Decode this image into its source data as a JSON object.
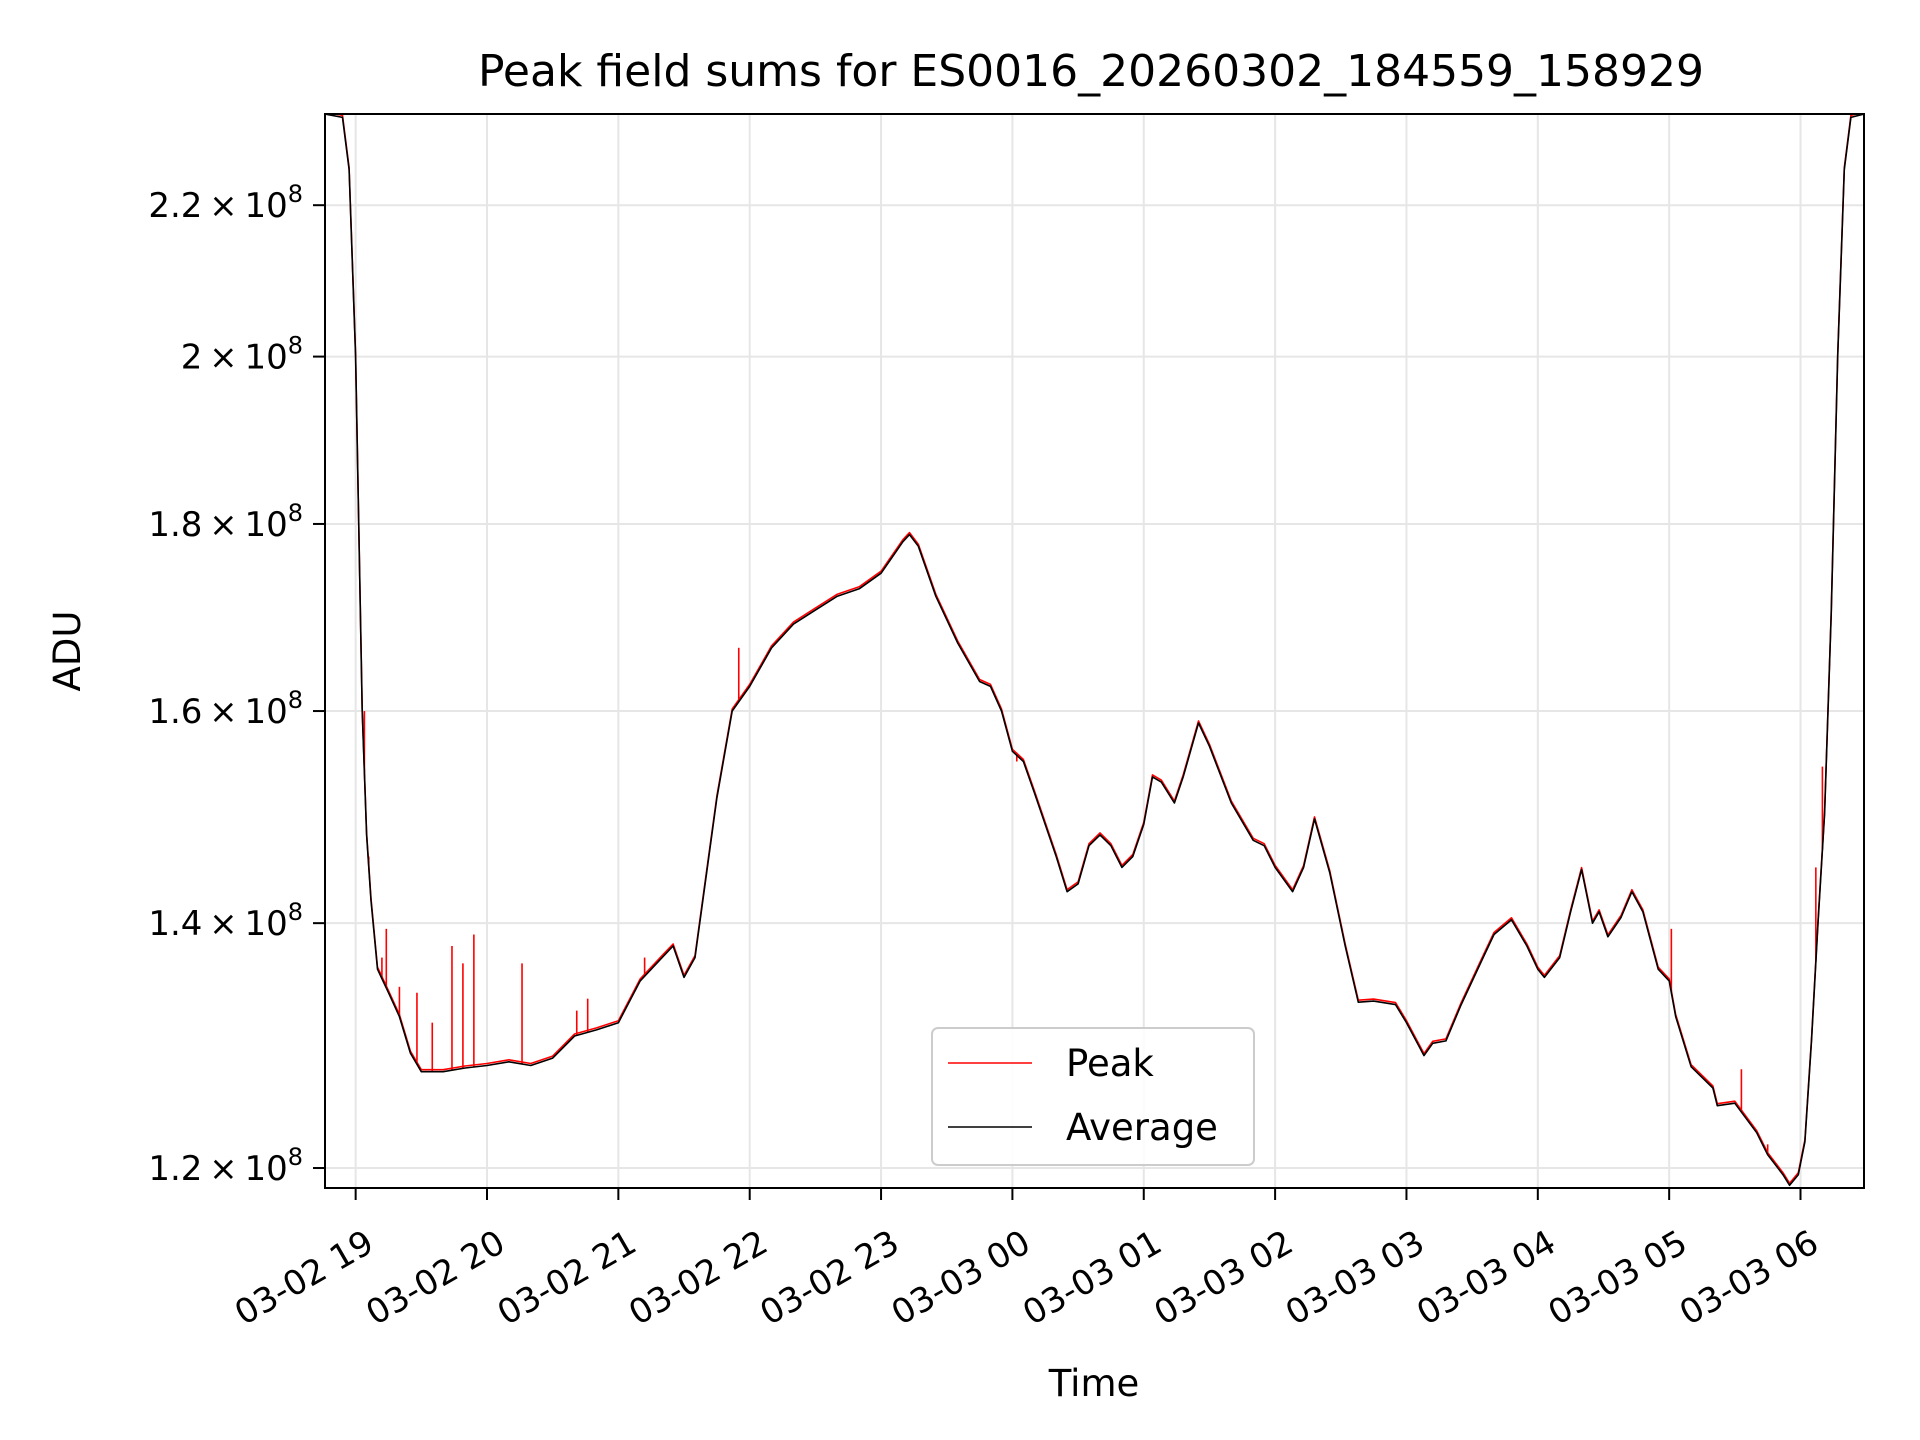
{
  "chart_data": {
    "type": "line",
    "title": "Peak field sums for ES0016_20260302_184559_158929",
    "xlabel": "Time",
    "ylabel": "ADU",
    "y_scale": "log",
    "grid": true,
    "legend_position": "lower-center",
    "xlim": [
      "2026-03-02 18:46",
      "2026-03-03 06:29"
    ],
    "ylim": [
      118500000,
      233000000
    ],
    "x_ticks": [
      {
        "t": "2026-03-02 19:00",
        "label": "03-02 19"
      },
      {
        "t": "2026-03-02 20:00",
        "label": "03-02 20"
      },
      {
        "t": "2026-03-02 21:00",
        "label": "03-02 21"
      },
      {
        "t": "2026-03-02 22:00",
        "label": "03-02 22"
      },
      {
        "t": "2026-03-02 23:00",
        "label": "03-02 23"
      },
      {
        "t": "2026-03-03 00:00",
        "label": "03-03 00"
      },
      {
        "t": "2026-03-03 01:00",
        "label": "03-03 01"
      },
      {
        "t": "2026-03-03 02:00",
        "label": "03-03 02"
      },
      {
        "t": "2026-03-03 03:00",
        "label": "03-03 03"
      },
      {
        "t": "2026-03-03 04:00",
        "label": "03-03 04"
      },
      {
        "t": "2026-03-03 05:00",
        "label": "03-03 05"
      },
      {
        "t": "2026-03-03 06:00",
        "label": "03-03 06"
      }
    ],
    "y_ticks": [
      {
        "value": 120000000,
        "mantissa": "1.2",
        "base": "10",
        "exponent": "8"
      },
      {
        "value": 140000000,
        "mantissa": "1.4",
        "base": "10",
        "exponent": "8"
      },
      {
        "value": 160000000,
        "mantissa": "1.6",
        "base": "10",
        "exponent": "8"
      },
      {
        "value": 180000000,
        "mantissa": "1.8",
        "base": "10",
        "exponent": "8"
      },
      {
        "value": 200000000,
        "mantissa": "2",
        "base": "10",
        "exponent": "8"
      },
      {
        "value": 220000000,
        "mantissa": "2.2",
        "base": "10",
        "exponent": "8"
      }
    ],
    "series": [
      {
        "name": "Average",
        "color": "#000000",
        "points": [
          [
            "2026-03-02 18:46",
            233000000
          ],
          [
            "2026-03-02 18:54",
            232500000
          ],
          [
            "2026-03-02 18:57",
            225000000
          ],
          [
            "2026-03-02 19:00",
            200000000
          ],
          [
            "2026-03-02 19:03",
            160000000
          ],
          [
            "2026-03-02 19:05",
            148000000
          ],
          [
            "2026-03-02 19:07",
            142000000
          ],
          [
            "2026-03-02 19:10",
            136000000
          ],
          [
            "2026-03-02 19:15",
            134000000
          ],
          [
            "2026-03-02 19:20",
            132000000
          ],
          [
            "2026-03-02 19:25",
            129000000
          ],
          [
            "2026-03-02 19:30",
            127500000
          ],
          [
            "2026-03-02 19:40",
            127500000
          ],
          [
            "2026-03-02 19:50",
            127800000
          ],
          [
            "2026-03-02 20:00",
            128000000
          ],
          [
            "2026-03-02 20:10",
            128300000
          ],
          [
            "2026-03-02 20:20",
            128000000
          ],
          [
            "2026-03-02 20:30",
            128600000
          ],
          [
            "2026-03-02 20:40",
            130400000
          ],
          [
            "2026-03-02 20:50",
            130900000
          ],
          [
            "2026-03-02 21:00",
            131500000
          ],
          [
            "2026-03-02 21:10",
            135000000
          ],
          [
            "2026-03-02 21:20",
            137000000
          ],
          [
            "2026-03-02 21:25",
            138000000
          ],
          [
            "2026-03-02 21:30",
            135300000
          ],
          [
            "2026-03-02 21:35",
            137000000
          ],
          [
            "2026-03-02 21:45",
            151500000
          ],
          [
            "2026-03-02 21:52",
            160000000
          ],
          [
            "2026-03-02 22:00",
            162500000
          ],
          [
            "2026-03-02 22:10",
            166500000
          ],
          [
            "2026-03-02 22:20",
            169000000
          ],
          [
            "2026-03-02 22:30",
            170500000
          ],
          [
            "2026-03-02 22:40",
            172000000
          ],
          [
            "2026-03-02 22:50",
            172800000
          ],
          [
            "2026-03-02 23:00",
            174500000
          ],
          [
            "2026-03-02 23:10",
            178000000
          ],
          [
            "2026-03-02 23:13",
            178800000
          ],
          [
            "2026-03-02 23:17",
            177500000
          ],
          [
            "2026-03-02 23:25",
            172000000
          ],
          [
            "2026-03-02 23:35",
            167000000
          ],
          [
            "2026-03-02 23:45",
            163000000
          ],
          [
            "2026-03-02 23:50",
            162500000
          ],
          [
            "2026-03-02 23:55",
            160000000
          ],
          [
            "2026-03-03 00:00",
            156000000
          ],
          [
            "2026-03-03 00:05",
            155000000
          ],
          [
            "2026-03-03 00:10",
            152000000
          ],
          [
            "2026-03-03 00:20",
            146000000
          ],
          [
            "2026-03-03 00:25",
            142800000
          ],
          [
            "2026-03-03 00:30",
            143500000
          ],
          [
            "2026-03-03 00:35",
            147000000
          ],
          [
            "2026-03-03 00:40",
            148000000
          ],
          [
            "2026-03-03 00:45",
            147000000
          ],
          [
            "2026-03-03 00:50",
            145000000
          ],
          [
            "2026-03-03 00:55",
            146000000
          ],
          [
            "2026-03-03 01:00",
            149000000
          ],
          [
            "2026-03-03 01:04",
            153500000
          ],
          [
            "2026-03-03 01:08",
            153000000
          ],
          [
            "2026-03-03 01:14",
            151000000
          ],
          [
            "2026-03-03 01:18",
            153500000
          ],
          [
            "2026-03-03 01:25",
            158800000
          ],
          [
            "2026-03-03 01:30",
            156500000
          ],
          [
            "2026-03-03 01:40",
            151000000
          ],
          [
            "2026-03-03 01:50",
            147500000
          ],
          [
            "2026-03-03 01:55",
            147000000
          ],
          [
            "2026-03-03 02:00",
            145000000
          ],
          [
            "2026-03-03 02:08",
            142800000
          ],
          [
            "2026-03-03 02:13",
            145000000
          ],
          [
            "2026-03-03 02:18",
            149500000
          ],
          [
            "2026-03-03 02:25",
            144500000
          ],
          [
            "2026-03-03 02:32",
            138000000
          ],
          [
            "2026-03-03 02:38",
            133200000
          ],
          [
            "2026-03-03 02:45",
            133300000
          ],
          [
            "2026-03-03 02:55",
            133000000
          ],
          [
            "2026-03-03 03:00",
            131500000
          ],
          [
            "2026-03-03 03:08",
            128800000
          ],
          [
            "2026-03-03 03:12",
            129800000
          ],
          [
            "2026-03-03 03:18",
            130000000
          ],
          [
            "2026-03-03 03:25",
            133000000
          ],
          [
            "2026-03-03 03:35",
            137000000
          ],
          [
            "2026-03-03 03:40",
            139000000
          ],
          [
            "2026-03-03 03:48",
            140300000
          ],
          [
            "2026-03-03 03:55",
            138000000
          ],
          [
            "2026-03-03 04:00",
            136000000
          ],
          [
            "2026-03-03 04:03",
            135300000
          ],
          [
            "2026-03-03 04:10",
            137000000
          ],
          [
            "2026-03-03 04:15",
            141000000
          ],
          [
            "2026-03-03 04:20",
            144800000
          ],
          [
            "2026-03-03 04:25",
            140000000
          ],
          [
            "2026-03-03 04:28",
            141000000
          ],
          [
            "2026-03-03 04:32",
            138800000
          ],
          [
            "2026-03-03 04:38",
            140500000
          ],
          [
            "2026-03-03 04:43",
            142800000
          ],
          [
            "2026-03-03 04:48",
            141000000
          ],
          [
            "2026-03-03 04:55",
            136000000
          ],
          [
            "2026-03-03 05:00",
            135000000
          ],
          [
            "2026-03-03 05:03",
            132000000
          ],
          [
            "2026-03-03 05:10",
            127900000
          ],
          [
            "2026-03-03 05:20",
            126200000
          ],
          [
            "2026-03-03 05:22",
            124800000
          ],
          [
            "2026-03-03 05:30",
            125000000
          ],
          [
            "2026-03-03 05:40",
            122700000
          ],
          [
            "2026-03-03 05:45",
            121000000
          ],
          [
            "2026-03-03 05:52",
            119500000
          ],
          [
            "2026-03-03 05:55",
            118700000
          ],
          [
            "2026-03-03 05:59",
            119500000
          ],
          [
            "2026-03-03 06:02",
            122000000
          ],
          [
            "2026-03-03 06:05",
            130000000
          ],
          [
            "2026-03-03 06:08",
            140000000
          ],
          [
            "2026-03-03 06:11",
            150000000
          ],
          [
            "2026-03-03 06:14",
            170000000
          ],
          [
            "2026-03-03 06:17",
            200000000
          ],
          [
            "2026-03-03 06:20",
            225000000
          ],
          [
            "2026-03-03 06:23",
            232500000
          ],
          [
            "2026-03-03 06:29",
            233000000
          ]
        ]
      },
      {
        "name": "Peak",
        "color": "#ff0000",
        "spikes": [
          [
            "2026-03-02 19:04",
            160000000
          ],
          [
            "2026-03-02 19:06",
            146000000
          ],
          [
            "2026-03-02 19:12",
            137000000
          ],
          [
            "2026-03-02 19:14",
            139500000
          ],
          [
            "2026-03-02 19:20",
            134500000
          ],
          [
            "2026-03-02 19:28",
            134000000
          ],
          [
            "2026-03-02 19:35",
            131500000
          ],
          [
            "2026-03-02 19:44",
            138000000
          ],
          [
            "2026-03-02 19:49",
            136500000
          ],
          [
            "2026-03-02 19:54",
            139000000
          ],
          [
            "2026-03-02 20:16",
            136500000
          ],
          [
            "2026-03-02 20:41",
            132500000
          ],
          [
            "2026-03-02 20:46",
            133500000
          ],
          [
            "2026-03-02 21:12",
            137000000
          ],
          [
            "2026-03-02 21:23",
            137800000
          ],
          [
            "2026-03-02 21:55",
            166500000
          ],
          [
            "2026-03-03 00:02",
            155000000
          ],
          [
            "2026-03-03 05:01",
            139500000
          ],
          [
            "2026-03-03 05:33",
            127700000
          ],
          [
            "2026-03-03 05:45",
            121800000
          ],
          [
            "2026-03-03 06:07",
            145000000
          ],
          [
            "2026-03-03 06:10",
            154500000
          ]
        ]
      }
    ]
  }
}
